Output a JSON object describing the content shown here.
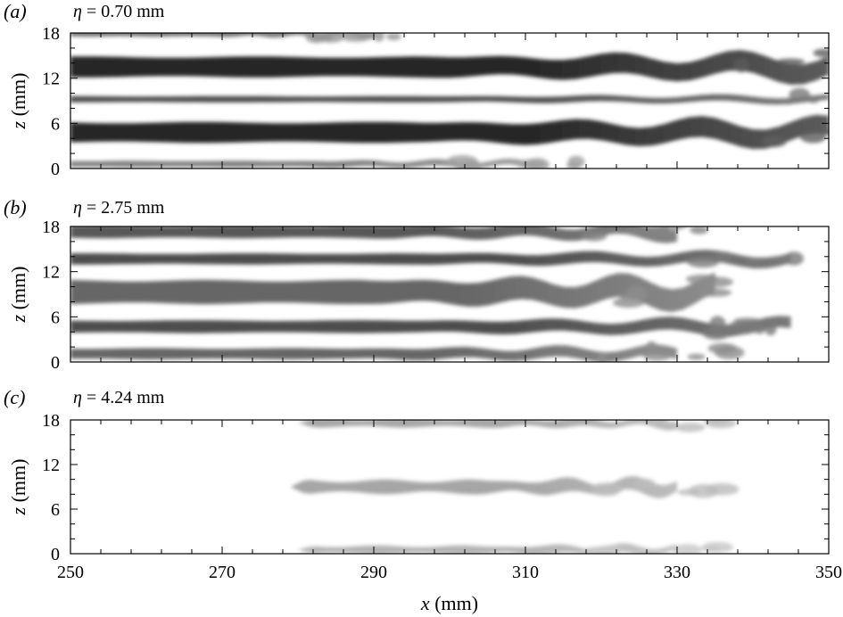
{
  "figure": {
    "panels": [
      {
        "id": "a",
        "label": "(a)",
        "eta_symbol": "η",
        "title_rest": "= 0.70 mm"
      },
      {
        "id": "b",
        "label": "(b)",
        "eta_symbol": "η",
        "title_rest": "= 2.75 mm"
      },
      {
        "id": "c",
        "label": "(c)",
        "eta_symbol": "η",
        "title_rest": "= 4.24 mm"
      }
    ],
    "ylabel": "z (mm)",
    "xlabel": "x (mm)"
  },
  "chart_data": [
    {
      "type": "heatmap",
      "panel": "a",
      "title": "η = 0.70 mm",
      "ylabel": "z (mm)",
      "xlim": [
        250,
        350
      ],
      "ylim": [
        0,
        18
      ],
      "yticks": [
        0,
        6,
        12,
        18
      ],
      "colormap": "white-to-black",
      "streaks": [
        {
          "z": 18.0,
          "x_start": 250,
          "x_end": 290,
          "width": 0.9,
          "intensity": 0.55
        },
        {
          "z": 13.5,
          "x_start": 250,
          "x_end": 350,
          "width": 2.6,
          "intensity": 0.85
        },
        {
          "z": 9.2,
          "x_start": 250,
          "x_end": 350,
          "width": 0.8,
          "intensity": 0.7
        },
        {
          "z": 4.8,
          "x_start": 250,
          "x_end": 350,
          "width": 2.6,
          "intensity": 0.85
        },
        {
          "z": 0.6,
          "x_start": 250,
          "x_end": 310,
          "width": 0.8,
          "intensity": 0.5
        }
      ]
    },
    {
      "type": "heatmap",
      "panel": "b",
      "title": "η = 2.75 mm",
      "ylabel": "z (mm)",
      "xlim": [
        250,
        350
      ],
      "ylim": [
        0,
        18
      ],
      "yticks": [
        0,
        6,
        12,
        18
      ],
      "colormap": "white-to-black",
      "streaks": [
        {
          "z": 17.3,
          "x_start": 250,
          "x_end": 330,
          "width": 1.6,
          "intensity": 0.65
        },
        {
          "z": 13.7,
          "x_start": 250,
          "x_end": 345,
          "width": 1.4,
          "intensity": 0.7
        },
        {
          "z": 9.3,
          "x_start": 250,
          "x_end": 335,
          "width": 3.0,
          "intensity": 0.6
        },
        {
          "z": 4.7,
          "x_start": 250,
          "x_end": 345,
          "width": 1.6,
          "intensity": 0.7
        },
        {
          "z": 1.1,
          "x_start": 250,
          "x_end": 330,
          "width": 1.4,
          "intensity": 0.6
        }
      ]
    },
    {
      "type": "heatmap",
      "panel": "c",
      "title": "η = 4.24 mm",
      "ylabel": "z (mm)",
      "xlabel": "x (mm)",
      "xlim": [
        250,
        350
      ],
      "ylim": [
        0,
        18
      ],
      "xticks": [
        250,
        270,
        290,
        310,
        330,
        350
      ],
      "yticks": [
        0,
        6,
        12,
        18
      ],
      "colormap": "white-to-black",
      "streaks": [
        {
          "z": 17.6,
          "x_start": 280,
          "x_end": 330,
          "width": 1.0,
          "intensity": 0.35
        },
        {
          "z": 9.0,
          "x_start": 279,
          "x_end": 330,
          "width": 1.6,
          "intensity": 0.35
        },
        {
          "z": 0.5,
          "x_start": 280,
          "x_end": 330,
          "width": 1.0,
          "intensity": 0.3
        }
      ]
    }
  ]
}
